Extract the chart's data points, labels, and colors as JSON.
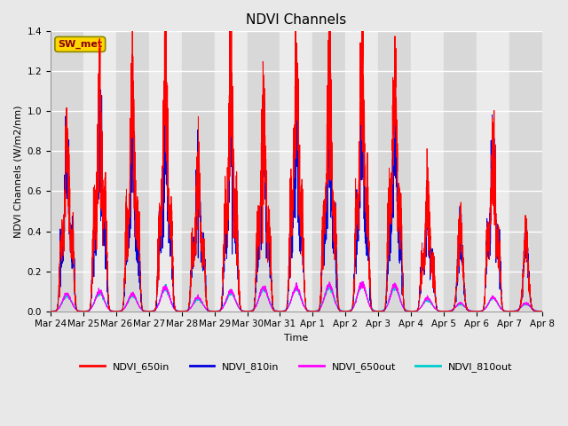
{
  "title": "NDVI Channels",
  "xlabel": "Time",
  "ylabel": "NDVI Channels (W/m2/nm)",
  "ylim": [
    0,
    1.4
  ],
  "annotation_text": "SW_met",
  "annotation_color": "#8B0000",
  "annotation_bg": "#FFD700",
  "x_tick_labels": [
    "Mar 24",
    "Mar 25",
    "Mar 26",
    "Mar 27",
    "Mar 28",
    "Mar 29",
    "Mar 30",
    "Mar 31",
    "Apr 1",
    "Apr 2",
    "Apr 3",
    "Apr 4",
    "Apr 5",
    "Apr 6",
    "Apr 7",
    "Apr 8"
  ],
  "series": {
    "NDVI_650in": {
      "color": "#FF0000",
      "zorder": 4,
      "lw": 0.7
    },
    "NDVI_810in": {
      "color": "#0000DD",
      "zorder": 3,
      "lw": 0.7
    },
    "NDVI_650out": {
      "color": "#FF00FF",
      "zorder": 2,
      "lw": 0.7
    },
    "NDVI_810out": {
      "color": "#00CCCC",
      "zorder": 1,
      "lw": 0.7
    }
  },
  "legend_labels": [
    "NDVI_650in",
    "NDVI_810in",
    "NDVI_650out",
    "NDVI_810out"
  ],
  "legend_colors": [
    "#FF0000",
    "#0000DD",
    "#FF00FF",
    "#00CCCC"
  ],
  "bg_color": "#e8e8e8",
  "band_light": "#ebebeb",
  "band_dark": "#d8d8d8",
  "grid_color": "#ffffff",
  "title_fontsize": 11,
  "axis_fontsize": 8,
  "tick_fontsize": 7.5
}
